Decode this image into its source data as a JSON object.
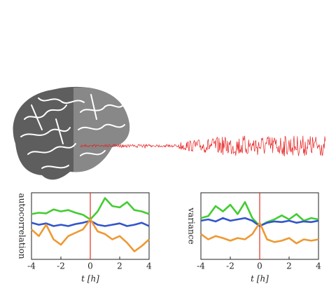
{
  "chart_data": [
    {
      "type": "line",
      "ylabel": "autocorrelation",
      "xlabel": "t [h]",
      "x": [
        -4,
        -3.5,
        -3,
        -2.5,
        -2,
        -1.5,
        -1,
        -0.5,
        0,
        0.5,
        1,
        1.5,
        2,
        2.5,
        3,
        3.5,
        4
      ],
      "xlim": [
        -4,
        4
      ],
      "xticks": [
        -4,
        -2,
        0,
        2,
        4
      ],
      "ylim": [
        0,
        1
      ],
      "vline": 0,
      "vline_color": "#e03020",
      "series": [
        {
          "color": "#44cc33",
          "values": [
            0.68,
            0.7,
            0.69,
            0.75,
            0.72,
            0.74,
            0.7,
            0.67,
            0.6,
            0.72,
            0.92,
            0.8,
            0.78,
            0.86,
            0.74,
            0.72,
            0.68
          ]
        },
        {
          "color": "#3355cc",
          "values": [
            0.55,
            0.52,
            0.54,
            0.5,
            0.52,
            0.5,
            0.53,
            0.55,
            0.58,
            0.52,
            0.5,
            0.52,
            0.54,
            0.5,
            0.52,
            0.55,
            0.5
          ]
        },
        {
          "color": "#ee9933",
          "values": [
            0.45,
            0.35,
            0.52,
            0.3,
            0.22,
            0.35,
            0.4,
            0.45,
            0.6,
            0.42,
            0.38,
            0.3,
            0.35,
            0.25,
            0.12,
            0.2,
            0.3
          ]
        }
      ]
    },
    {
      "type": "line",
      "ylabel": "variance",
      "xlabel": "t [h]",
      "x": [
        -4,
        -3.5,
        -3,
        -2.5,
        -2,
        -1.5,
        -1,
        -0.5,
        0,
        0.5,
        1,
        1.5,
        2,
        2.5,
        3,
        3.5,
        4
      ],
      "xlim": [
        -4,
        4
      ],
      "xticks": [
        -4,
        -2,
        0,
        2,
        4
      ],
      "ylim": [
        0,
        1
      ],
      "vline": 0,
      "vline_color": "#e03020",
      "series": [
        {
          "color": "#44cc33",
          "values": [
            0.62,
            0.65,
            0.8,
            0.72,
            0.82,
            0.68,
            0.86,
            0.62,
            0.5,
            0.56,
            0.6,
            0.66,
            0.6,
            0.68,
            0.58,
            0.62,
            0.6
          ]
        },
        {
          "color": "#3355cc",
          "values": [
            0.58,
            0.6,
            0.57,
            0.62,
            0.58,
            0.6,
            0.62,
            0.58,
            0.5,
            0.55,
            0.57,
            0.56,
            0.58,
            0.55,
            0.57,
            0.56,
            0.58
          ]
        },
        {
          "color": "#ee9933",
          "values": [
            0.38,
            0.3,
            0.35,
            0.32,
            0.28,
            0.32,
            0.3,
            0.38,
            0.55,
            0.3,
            0.26,
            0.28,
            0.32,
            0.24,
            0.3,
            0.28,
            0.3
          ]
        }
      ]
    }
  ]
}
